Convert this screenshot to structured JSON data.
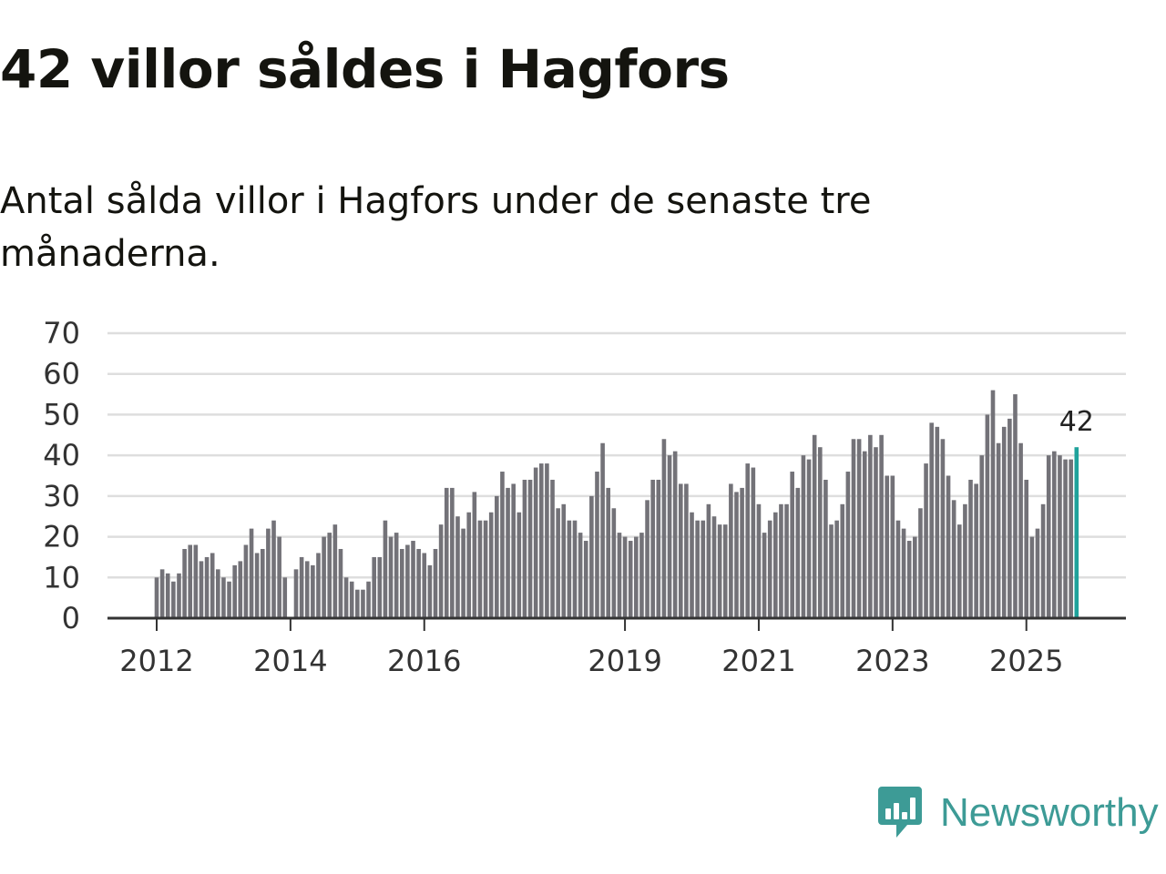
{
  "header": {
    "title": "42 villor såldes i Hagfors",
    "subtitle": "Antal sålda villor i Hagfors under de senaste tre månaderna."
  },
  "brand": {
    "name": "Newsworthy",
    "icon": "newsworthy-logo-icon",
    "color": "#3d9b96"
  },
  "colors": {
    "bar": "#737278",
    "highlight": "#1fa29b",
    "grid": "#dedede",
    "axis": "#333333"
  },
  "chart_data": {
    "type": "bar",
    "title": "42 villor såldes i Hagfors",
    "subtitle": "Antal sålda villor i Hagfors under de senaste tre månaderna.",
    "xlabel": "",
    "ylabel": "",
    "ylim": [
      0,
      70
    ],
    "yticks": [
      0,
      10,
      20,
      30,
      40,
      50,
      60,
      70
    ],
    "grid": true,
    "x_start": "2012-01",
    "x_end": "2025-10",
    "xtick_labels": [
      {
        "label": "2012",
        "index": 0
      },
      {
        "label": "2014",
        "index": 24
      },
      {
        "label": "2016",
        "index": 48
      },
      {
        "label": "2019",
        "index": 84
      },
      {
        "label": "2021",
        "index": 108
      },
      {
        "label": "2023",
        "index": 132
      },
      {
        "label": "2025",
        "index": 156
      }
    ],
    "highlight_label": "42",
    "series": [
      {
        "name": "Antal sålda villor",
        "values": [
          10,
          12,
          11,
          9,
          11,
          17,
          18,
          18,
          14,
          15,
          16,
          12,
          10,
          9,
          13,
          14,
          18,
          22,
          16,
          17,
          22,
          24,
          20,
          10,
          null,
          12,
          15,
          14,
          13,
          16,
          20,
          21,
          23,
          17,
          10,
          9,
          7,
          7,
          9,
          15,
          15,
          24,
          20,
          21,
          17,
          18,
          19,
          17,
          16,
          13,
          17,
          23,
          32,
          32,
          25,
          22,
          26,
          31,
          24,
          24,
          26,
          30,
          36,
          32,
          33,
          26,
          34,
          34,
          37,
          38,
          38,
          34,
          27,
          28,
          24,
          24,
          21,
          19,
          30,
          36,
          43,
          32,
          27,
          21,
          20,
          19,
          20,
          21,
          29,
          34,
          34,
          44,
          40,
          41,
          33,
          33,
          26,
          24,
          24,
          28,
          25,
          23,
          23,
          33,
          31,
          32,
          38,
          37,
          28,
          21,
          24,
          26,
          28,
          28,
          36,
          32,
          40,
          39,
          45,
          42,
          34,
          23,
          24,
          28,
          36,
          44,
          44,
          41,
          45,
          42,
          45,
          35,
          35,
          24,
          22,
          19,
          20,
          27,
          38,
          48,
          47,
          44,
          35,
          29,
          23,
          28,
          34,
          33,
          40,
          50,
          56,
          43,
          47,
          49,
          55,
          43,
          34,
          20,
          22,
          28,
          40,
          41,
          40,
          39,
          39,
          42
        ]
      }
    ]
  }
}
